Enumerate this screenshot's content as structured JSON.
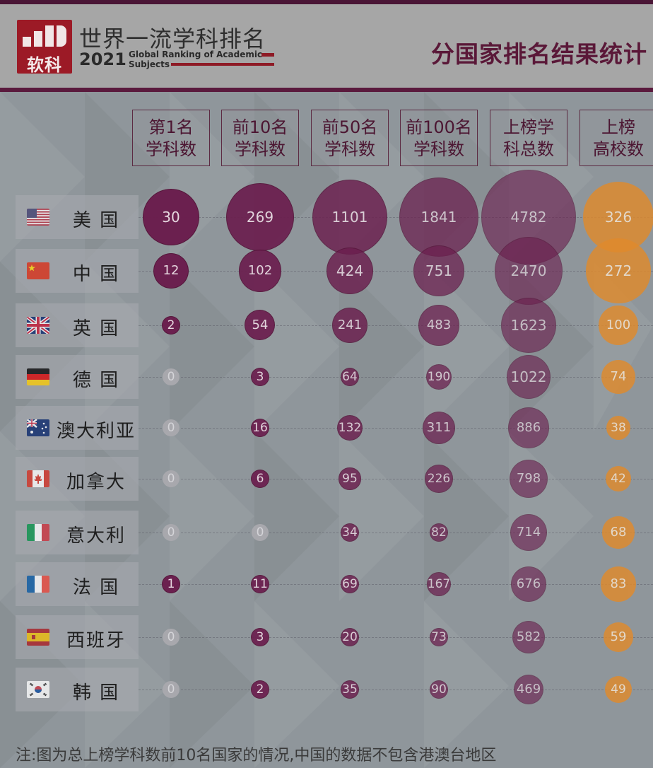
{
  "header": {
    "logo_text": "软科",
    "brand_title": "世界一流学科排名",
    "year": "2021",
    "subtitle_line1": "Global Ranking of Academic",
    "subtitle_line2": "Subjects",
    "stats_title": "分国家排名结果统计"
  },
  "colors": {
    "top10_bubble": "#6b1e4e",
    "schools_bubble": "#e08a2c",
    "header_text": "#4c1632"
  },
  "chart_data": {
    "type": "bubble-table",
    "columns": [
      {
        "line1": "第1名",
        "line2": "学科数"
      },
      {
        "line1": "前10名",
        "line2": "学科数"
      },
      {
        "line1": "前50名",
        "line2": "学科数"
      },
      {
        "line1": "前100名",
        "line2": "学科数"
      },
      {
        "line1": "上榜学",
        "line2": "科总数"
      },
      {
        "line1": "上榜",
        "line2": "高校数"
      }
    ],
    "rows": [
      {
        "country": "美 国",
        "flag": "us-flag",
        "values": [
          30,
          269,
          1101,
          1841,
          4782,
          326
        ]
      },
      {
        "country": "中 国",
        "flag": "cn-flag",
        "values": [
          12,
          102,
          424,
          751,
          2470,
          272
        ]
      },
      {
        "country": "英 国",
        "flag": "uk-flag",
        "values": [
          2,
          54,
          241,
          483,
          1623,
          100
        ]
      },
      {
        "country": "德 国",
        "flag": "de-flag",
        "values": [
          0,
          3,
          64,
          190,
          1022,
          74
        ]
      },
      {
        "country": "澳大利亚",
        "flag": "au-flag",
        "values": [
          0,
          16,
          132,
          311,
          886,
          38
        ]
      },
      {
        "country": "加拿大",
        "flag": "ca-flag",
        "values": [
          0,
          6,
          95,
          226,
          798,
          42
        ]
      },
      {
        "country": "意大利",
        "flag": "it-flag",
        "values": [
          0,
          0,
          34,
          82,
          714,
          68
        ]
      },
      {
        "country": "法 国",
        "flag": "fr-flag",
        "values": [
          1,
          11,
          69,
          167,
          676,
          83
        ]
      },
      {
        "country": "西班牙",
        "flag": "es-flag",
        "values": [
          0,
          3,
          20,
          73,
          582,
          59
        ]
      },
      {
        "country": "韩 国",
        "flag": "kr-flag",
        "values": [
          0,
          2,
          35,
          90,
          469,
          49
        ]
      }
    ]
  },
  "footnote": "注:图为总上榜学科数前10名国家的情况,中国的数据不包含港澳台地区"
}
